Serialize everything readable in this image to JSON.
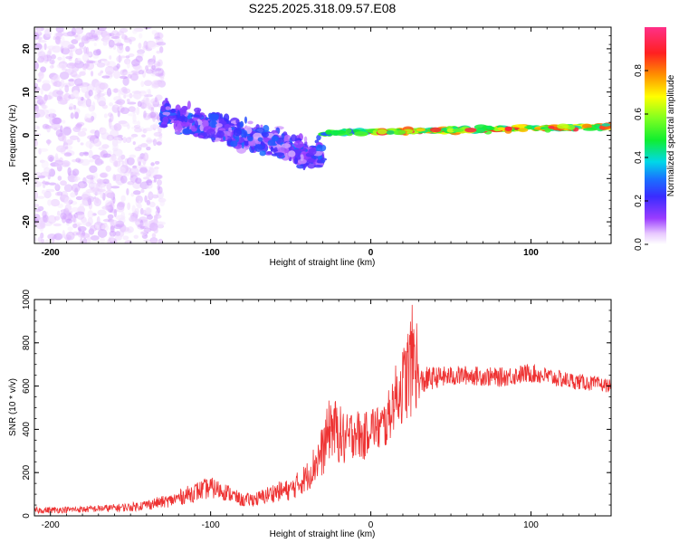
{
  "title": "S225.2025.318.09.57.E08",
  "chart_data": [
    {
      "type": "heatmap",
      "name": "spectrogram",
      "xlabel": "Height of straight line (km)",
      "ylabel": "Frequency (Hz)",
      "xlim": [
        -210,
        150
      ],
      "ylim": [
        -25,
        25
      ],
      "xticks": [
        -200,
        -100,
        0,
        100
      ],
      "xtick_labels": [
        "-200",
        "-100",
        "0",
        "100"
      ],
      "yticks": [
        -20,
        -10,
        0,
        10,
        20
      ],
      "ytick_labels": [
        "-20",
        "-10",
        "0",
        "10",
        "20"
      ],
      "colorbar": {
        "label": "Normalized spectral amplitude",
        "range": [
          0,
          1
        ],
        "ticks": [
          0.0,
          0.2,
          0.4,
          0.6,
          0.8
        ],
        "tick_labels": [
          "0.0",
          "0.2",
          "0.4",
          "0.6",
          "0.8"
        ],
        "colormap": "rainbow"
      },
      "description_of_trend": [
        {
          "x_range": [
            -210,
            -130
          ],
          "freq_spread_hz": 25,
          "center_hz": 0,
          "amplitude": 0.05
        },
        {
          "x_range": [
            -130,
            -30
          ],
          "freq_spread_hz": 6,
          "center_hz_start": 5,
          "center_hz_end": -5,
          "amplitude": 0.2
        },
        {
          "x_range": [
            -30,
            150
          ],
          "freq_spread_hz": 1,
          "center_hz_start": 0.5,
          "center_hz_end": 2,
          "amplitude": 0.9
        }
      ]
    },
    {
      "type": "line",
      "name": "snr",
      "xlabel": "Height of straight line (km)",
      "ylabel": "SNR (10 * v/v)",
      "xlim": [
        -210,
        150
      ],
      "ylim": [
        0,
        1000
      ],
      "xticks": [
        -200,
        -100,
        0,
        100
      ],
      "xtick_labels": [
        "-200",
        "-100",
        "0",
        "100"
      ],
      "yticks": [
        0,
        200,
        400,
        600,
        800,
        1000
      ],
      "ytick_labels": [
        "0",
        "200",
        "400",
        "600",
        "800",
        "1000"
      ],
      "line_color": "#ee3333",
      "series": [
        {
          "name": "SNR",
          "x": [
            -210,
            -180,
            -150,
            -125,
            -110,
            -100,
            -90,
            -80,
            -70,
            -60,
            -50,
            -40,
            -30,
            -25,
            -20,
            -15,
            -10,
            -5,
            0,
            5,
            10,
            15,
            20,
            25,
            28,
            30,
            35,
            40,
            60,
            80,
            100,
            120,
            140,
            150
          ],
          "y": [
            25,
            30,
            40,
            70,
            110,
            130,
            110,
            70,
            80,
            110,
            120,
            180,
            300,
            420,
            380,
            340,
            400,
            350,
            420,
            400,
            430,
            550,
            600,
            700,
            750,
            610,
            630,
            640,
            650,
            640,
            660,
            630,
            610,
            600
          ],
          "noise_amplitude": [
            15,
            15,
            20,
            30,
            45,
            50,
            40,
            30,
            35,
            45,
            50,
            70,
            120,
            150,
            140,
            130,
            120,
            110,
            100,
            110,
            120,
            140,
            180,
            250,
            300,
            70,
            60,
            50,
            45,
            45,
            45,
            40,
            35,
            30
          ]
        }
      ]
    }
  ]
}
